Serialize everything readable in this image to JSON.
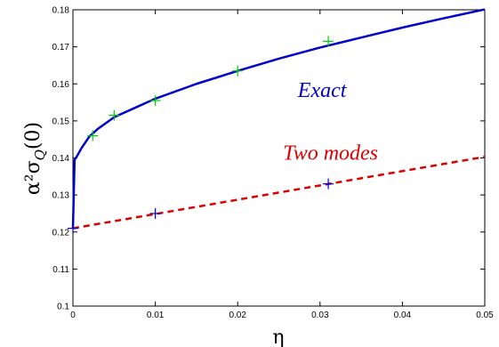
{
  "chart_data": {
    "type": "line",
    "xlabel": "η",
    "ylabel": "α²σ",
    "ylabel_sub": "Q",
    "ylabel_suffix": "(0)",
    "xlim": [
      0,
      0.05
    ],
    "ylim": [
      0.1,
      0.18
    ],
    "x_ticks": [
      0,
      0.01,
      0.02,
      0.03,
      0.04,
      0.05
    ],
    "x_tick_labels": [
      "0",
      "0.01",
      "0.02",
      "0.03",
      "0.04",
      "0.05"
    ],
    "y_ticks": [
      0.1,
      0.11,
      0.12,
      0.13,
      0.14,
      0.15,
      0.16,
      0.17,
      0.18
    ],
    "y_tick_labels": [
      "0.1",
      "0.11",
      "0.12",
      "0.13",
      "0.14",
      "0.15",
      "0.16",
      "0.17",
      "0.18"
    ],
    "grid": false,
    "series": [
      {
        "name": "Exact",
        "style": "solid",
        "color": "#0000cc",
        "x": [
          0,
          0.0002,
          0.0005,
          0.001,
          0.002,
          0.003,
          0.005,
          0.0075,
          0.01,
          0.015,
          0.02,
          0.025,
          0.03,
          0.035,
          0.04,
          0.045,
          0.05
        ],
        "y": [
          0.121,
          0.1395,
          0.1405,
          0.1425,
          0.1458,
          0.1478,
          0.151,
          0.1535,
          0.156,
          0.16,
          0.1635,
          0.1668,
          0.1698,
          0.1725,
          0.1752,
          0.1777,
          0.1801
        ]
      },
      {
        "name": "Two modes",
        "style": "dashed",
        "color": "#dd0000",
        "x": [
          0,
          0.05
        ],
        "y": [
          0.121,
          0.1403
        ]
      }
    ],
    "markers": [
      {
        "color": "#00cc00",
        "points": [
          [
            0.0024,
            0.146
          ],
          [
            0.005,
            0.1515
          ],
          [
            0.01,
            0.1555
          ],
          [
            0.02,
            0.1635
          ],
          [
            0.031,
            0.1715
          ]
        ]
      },
      {
        "color": "#0000dd",
        "points": [
          [
            0,
            0.121
          ],
          [
            0.01,
            0.125
          ],
          [
            0.031,
            0.133
          ]
        ]
      }
    ],
    "annotations": [
      {
        "text": "Exact",
        "x": 0.0273,
        "y": 0.1565,
        "color": "#0000cc"
      },
      {
        "text": "Two modes",
        "x": 0.0255,
        "y": 0.1395,
        "color": "#dd0000"
      }
    ]
  }
}
